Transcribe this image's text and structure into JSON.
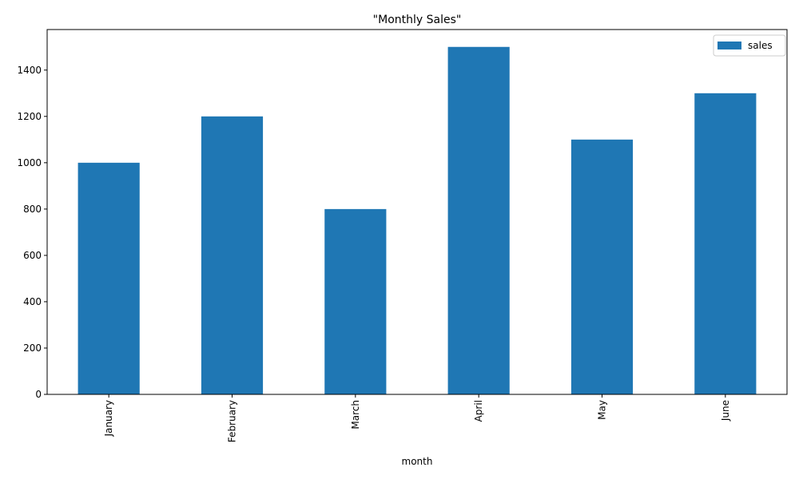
{
  "chart_data": {
    "type": "bar",
    "title": "\"Monthly Sales\"",
    "xlabel": "month",
    "ylabel": "",
    "categories": [
      "January",
      "February",
      "March",
      "April",
      "May",
      "June"
    ],
    "series": [
      {
        "name": "sales",
        "values": [
          1000,
          1200,
          800,
          1500,
          1100,
          1300
        ]
      }
    ],
    "ylim": [
      0,
      1575
    ],
    "yticks": [
      0,
      200,
      400,
      600,
      800,
      1000,
      1200,
      1400
    ],
    "ytick_labels": [
      "0",
      "200",
      "400",
      "600",
      "800",
      "1000",
      "1200",
      "1400"
    ],
    "x_tick_rotation": "vertical",
    "grid": false,
    "legend_position": "top-right",
    "colors": {
      "bar": "#1f77b4",
      "axis": "#000000",
      "legend_border": "#cccccc"
    }
  }
}
